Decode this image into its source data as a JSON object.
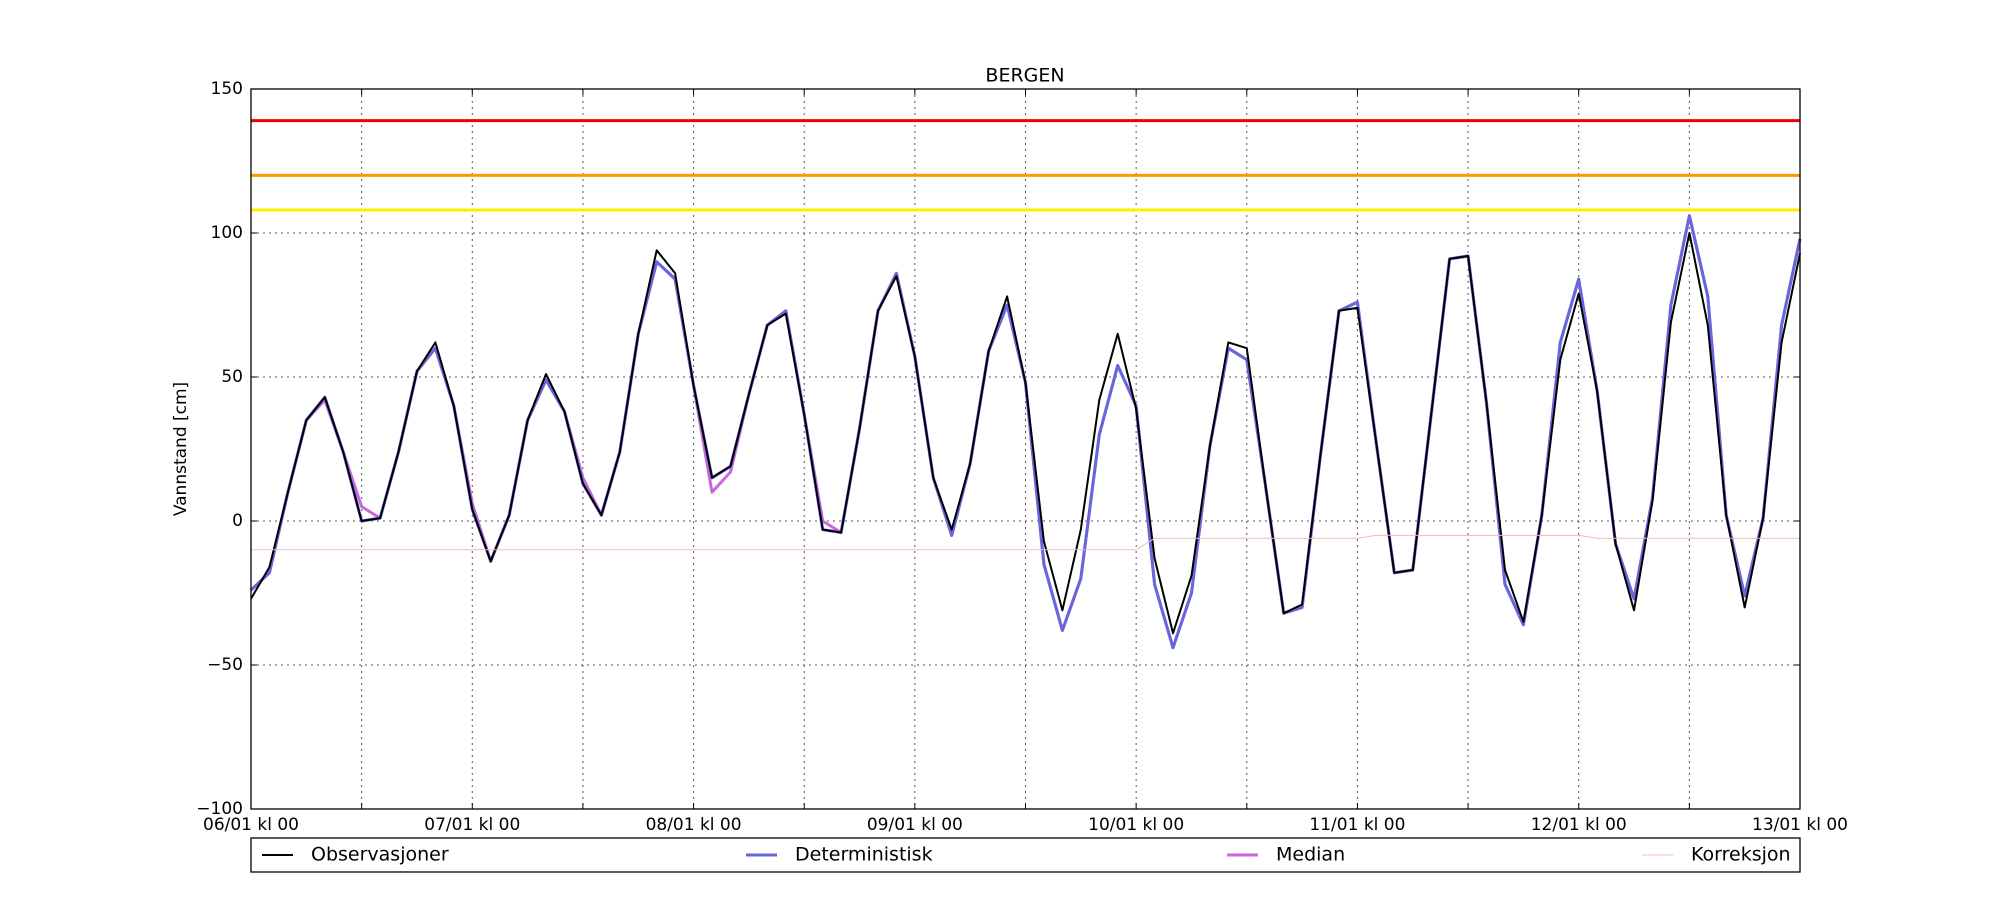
{
  "chart_data": {
    "type": "line",
    "title": "BERGEN",
    "y_label": "Vannstand [cm]",
    "x": [
      0,
      2,
      4,
      6,
      8,
      10,
      12,
      14,
      16,
      18,
      20,
      22,
      24,
      26,
      28,
      30,
      32,
      34,
      36,
      38,
      40,
      42,
      44,
      46,
      48,
      50,
      52,
      54,
      56,
      58,
      60,
      62,
      64,
      66,
      68,
      70,
      72,
      74,
      76,
      78,
      80,
      82,
      84,
      86,
      88,
      90,
      92,
      94,
      96,
      98,
      100,
      102,
      104,
      106,
      108,
      110,
      112,
      114,
      116,
      118,
      120,
      122,
      124,
      126,
      128,
      130,
      132,
      134,
      136,
      138,
      140,
      142,
      144,
      146,
      148,
      150,
      152,
      154,
      156,
      158,
      160,
      162,
      164,
      166,
      168
    ],
    "series": [
      {
        "name": "Median",
        "color": "#cc66dd",
        "width": 3,
        "values": [
          -24,
          -18,
          10,
          35,
          42,
          24,
          5,
          1,
          24,
          52,
          60,
          40,
          6,
          -14,
          2,
          35,
          49,
          38,
          15,
          2,
          24,
          65,
          90,
          84,
          47,
          10,
          17,
          44,
          68,
          73,
          37,
          0,
          -4,
          32,
          73,
          86,
          57,
          15,
          -5,
          20,
          59,
          75,
          48,
          -15,
          -38,
          -20,
          30,
          54,
          40,
          -22,
          -44,
          -25,
          26,
          60,
          56,
          13,
          -32,
          -30,
          23,
          73,
          76,
          28,
          -18,
          -17,
          37,
          91,
          92,
          41,
          -22,
          -36,
          2,
          62,
          84,
          45,
          -8,
          -27,
          8,
          75,
          106,
          78,
          2,
          -26,
          1,
          68,
          98
        ]
      },
      {
        "name": "Deterministisk",
        "color": "#6666dd",
        "width": 3,
        "values": [
          -24,
          -18,
          10,
          35,
          43,
          24,
          0,
          1,
          24,
          52,
          60,
          40,
          4,
          -14,
          2,
          35,
          49,
          38,
          13,
          2,
          24,
          65,
          90,
          84,
          47,
          15,
          19,
          44,
          68,
          73,
          37,
          -3,
          -4,
          32,
          73,
          86,
          57,
          15,
          -5,
          20,
          59,
          75,
          48,
          -15,
          -38,
          -20,
          30,
          54,
          40,
          -22,
          -44,
          -25,
          26,
          60,
          56,
          13,
          -32,
          -30,
          23,
          73,
          76,
          28,
          -18,
          -17,
          37,
          91,
          92,
          41,
          -22,
          -36,
          2,
          62,
          84,
          45,
          -8,
          -27,
          8,
          75,
          106,
          78,
          2,
          -26,
          1,
          68,
          98
        ]
      },
      {
        "name": "Observasjoner",
        "color": "#000000",
        "width": 2,
        "values": [
          -27,
          -16,
          10,
          35,
          43,
          24,
          0,
          1,
          24,
          52,
          62,
          40,
          4,
          -14,
          2,
          35,
          51,
          38,
          13,
          2,
          24,
          65,
          94,
          86,
          47,
          15,
          19,
          44,
          68,
          72,
          37,
          -3,
          -4,
          32,
          73,
          85,
          57,
          15,
          -3,
          20,
          59,
          78,
          48,
          -7,
          -31,
          -3,
          42,
          65,
          39,
          -13,
          -39,
          -19,
          26,
          62,
          60,
          13,
          -32,
          -29,
          23,
          73,
          74,
          28,
          -18,
          -17,
          37,
          91,
          92,
          41,
          -17,
          -35,
          2,
          56,
          79,
          45,
          -8,
          -31,
          7,
          69,
          100,
          68,
          2,
          -30,
          1,
          62,
          93
        ]
      },
      {
        "name": "Korreksjon",
        "color": "#f4b8b8",
        "width": 1,
        "values": [
          -10,
          -10,
          -10,
          -10,
          -10,
          -10,
          -10,
          -10,
          -10,
          -10,
          -10,
          -10,
          -10,
          -10,
          -10,
          -10,
          -10,
          -10,
          -10,
          -10,
          -10,
          -10,
          -10,
          -10,
          -10,
          -10,
          -10,
          -10,
          -10,
          -10,
          -10,
          -10,
          -10,
          -10,
          -10,
          -10,
          -10,
          -10,
          -10,
          -10,
          -10,
          -10,
          -10,
          -10,
          -10,
          -10,
          -10,
          -10,
          -10,
          -6,
          -6,
          -6,
          -6,
          -6,
          -6,
          -6,
          -6,
          -6,
          -6,
          -6,
          -6,
          -5,
          -5,
          -5,
          -5,
          -5,
          -5,
          -5,
          -5,
          -5,
          -5,
          -5,
          -5,
          -6,
          -6,
          -6,
          -6,
          -6,
          -6,
          -6,
          -6,
          -6,
          -6,
          -6,
          -6
        ]
      }
    ],
    "legend_order": [
      2,
      1,
      0,
      3
    ],
    "thresholds": [
      {
        "value": 139,
        "color": "#ee0000"
      },
      {
        "value": 120,
        "color": "#ff9900"
      },
      {
        "value": 108,
        "color": "#ffee00"
      }
    ],
    "xlim": [
      0,
      168
    ],
    "xticks": [
      {
        "value": 0,
        "label": "06/01 kl 00"
      },
      {
        "value": 24,
        "label": "07/01 kl 00"
      },
      {
        "value": 48,
        "label": "08/01 kl 00"
      },
      {
        "value": 72,
        "label": "09/01 kl 00"
      },
      {
        "value": 96,
        "label": "10/01 kl 00"
      },
      {
        "value": 120,
        "label": "11/01 kl 00"
      },
      {
        "value": 144,
        "label": "12/01 kl 00"
      },
      {
        "value": 168,
        "label": "13/01 kl 00"
      }
    ],
    "xminor_ticks": [
      12,
      36,
      60,
      84,
      108,
      132,
      156
    ],
    "ylim": [
      -100,
      150
    ],
    "yticks": [
      {
        "value": -100,
        "label": "−100"
      },
      {
        "value": -50,
        "label": "−50"
      },
      0,
      50,
      100,
      150
    ],
    "grid": true
  }
}
